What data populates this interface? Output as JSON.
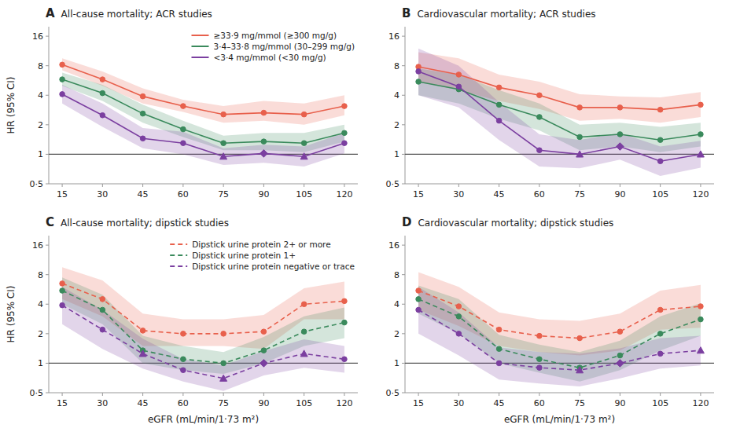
{
  "chart_data": [
    {
      "type": "line",
      "title": "All-cause mortality; ACR studies",
      "annotations": [
        "A"
      ],
      "y_label": "HR (95% CI)",
      "log": "y",
      "line_style": "solid",
      "legend": "upper right",
      "xlim": [
        10,
        125
      ],
      "xticks": [
        15,
        30,
        45,
        60,
        75,
        90,
        105,
        120
      ],
      "ylim": [
        0.5,
        20
      ],
      "yticks": [
        {
          "value": 0.5,
          "label": "0·5"
        },
        1,
        2,
        4,
        8,
        16
      ],
      "reference_line": 1,
      "x": [
        15,
        30,
        45,
        60,
        75,
        90,
        105,
        120
      ],
      "series": [
        {
          "name": "≥33·9 mg/mmol (≥300 mg/g)",
          "color": "#e8604c",
          "values": [
            8.2,
            5.8,
            3.9,
            3.1,
            2.55,
            2.65,
            2.55,
            3.1
          ],
          "ylo": [
            7.2,
            5.0,
            3.3,
            2.7,
            2.1,
            2.2,
            2.0,
            2.5
          ],
          "yhi": [
            9.5,
            7.0,
            4.7,
            3.6,
            3.1,
            3.5,
            3.3,
            4.0
          ],
          "marker": [
            "circle",
            "circle",
            "circle",
            "circle",
            "circle",
            "circle",
            "circle",
            "circle"
          ]
        },
        {
          "name": "3·4–33·8 mg/mmol (30–299 mg/g)",
          "color": "#3a8a5c",
          "values": [
            5.8,
            4.2,
            2.6,
            1.8,
            1.3,
            1.35,
            1.3,
            1.65
          ],
          "ylo": [
            5.0,
            3.5,
            2.1,
            1.5,
            1.1,
            1.1,
            1.05,
            1.35
          ],
          "yhi": [
            6.8,
            5.1,
            3.2,
            2.2,
            1.55,
            1.65,
            1.65,
            2.0
          ],
          "marker": [
            "circle",
            "circle",
            "circle",
            "circle",
            "circle",
            "circle",
            "circle",
            "circle"
          ]
        },
        {
          "name": "<3·4 mg/mmol (<30 mg/g)",
          "color": "#7b3fa0",
          "values": [
            4.1,
            2.5,
            1.45,
            1.3,
            0.95,
            1.02,
            0.95,
            1.3
          ],
          "ylo": [
            3.3,
            1.9,
            1.15,
            1.0,
            0.78,
            0.82,
            0.75,
            1.02
          ],
          "yhi": [
            5.1,
            3.3,
            1.85,
            1.7,
            1.15,
            1.25,
            1.2,
            1.65
          ],
          "marker": [
            "circle",
            "circle",
            "circle",
            "circle",
            "triangle",
            "diamond",
            "triangle",
            "circle"
          ]
        }
      ]
    },
    {
      "type": "line",
      "title": "Cardiovascular mortality; ACR studies",
      "annotations": [
        "B"
      ],
      "log": "y",
      "line_style": "solid",
      "xlim": [
        10,
        125
      ],
      "xticks": [
        15,
        30,
        45,
        60,
        75,
        90,
        105,
        120
      ],
      "ylim": [
        0.5,
        20
      ],
      "yticks": [
        {
          "value": 0.5,
          "label": "0·5"
        },
        1,
        2,
        4,
        8,
        16
      ],
      "reference_line": 1,
      "x": [
        15,
        30,
        45,
        60,
        75,
        90,
        105,
        120
      ],
      "series": [
        {
          "color": "#e8604c",
          "values": [
            7.8,
            6.5,
            4.8,
            4.0,
            3.0,
            3.0,
            2.85,
            3.2
          ],
          "ylo": [
            5.5,
            4.5,
            3.5,
            2.9,
            2.2,
            2.3,
            2.1,
            2.4
          ],
          "yhi": [
            11.0,
            9.5,
            6.5,
            5.5,
            4.1,
            3.9,
            3.8,
            4.3
          ],
          "marker": [
            "circle",
            "circle",
            "circle",
            "circle",
            "circle",
            "circle",
            "circle",
            "circle"
          ]
        },
        {
          "color": "#3a8a5c",
          "values": [
            5.5,
            4.6,
            3.2,
            2.4,
            1.5,
            1.6,
            1.4,
            1.6
          ],
          "ylo": [
            4.0,
            3.3,
            2.3,
            1.75,
            1.1,
            1.2,
            1.05,
            1.2
          ],
          "yhi": [
            7.5,
            6.5,
            4.5,
            3.3,
            2.0,
            2.1,
            1.9,
            2.1
          ],
          "marker": [
            "circle",
            "circle",
            "circle",
            "circle",
            "circle",
            "circle",
            "circle",
            "circle"
          ]
        },
        {
          "color": "#7b3fa0",
          "values": [
            7.0,
            4.9,
            2.2,
            1.1,
            1.0,
            1.2,
            0.85,
            1.0
          ],
          "ylo": [
            4.0,
            3.0,
            1.4,
            0.75,
            0.72,
            0.88,
            0.6,
            0.73
          ],
          "yhi": [
            12.0,
            8.0,
            3.4,
            1.6,
            1.4,
            1.65,
            1.2,
            1.37
          ],
          "marker": [
            "circle",
            "circle",
            "circle",
            "circle",
            "triangle",
            "diamond",
            "circle",
            "triangle"
          ]
        }
      ]
    },
    {
      "type": "line",
      "title": "All-cause mortality; dipstick studies",
      "annotations": [
        "C"
      ],
      "x_label": "eGFR (mL/min/1·73 m²)",
      "y_label": "HR (95% CI)",
      "log": "y",
      "line_style": "dashed",
      "legend": "upper right",
      "xlim": [
        10,
        125
      ],
      "xticks": [
        15,
        30,
        45,
        60,
        75,
        90,
        105,
        120
      ],
      "ylim": [
        0.5,
        20
      ],
      "yticks": [
        {
          "value": 0.5,
          "label": "0·5"
        },
        1,
        2,
        4,
        8,
        16
      ],
      "reference_line": 1,
      "x": [
        15,
        30,
        45,
        60,
        75,
        90,
        105,
        120
      ],
      "series": [
        {
          "name": "Dipstick urine protein 2+ or more",
          "color": "#e8604c",
          "values": [
            6.5,
            4.5,
            2.15,
            2.0,
            2.0,
            2.1,
            4.0,
            4.3
          ],
          "ylo": [
            4.5,
            3.0,
            1.5,
            1.5,
            1.5,
            1.4,
            2.8,
            2.8
          ],
          "yhi": [
            9.5,
            7.0,
            3.2,
            2.8,
            2.8,
            3.1,
            5.8,
            6.8
          ],
          "marker": [
            "circle",
            "circle",
            "circle",
            "circle",
            "circle",
            "circle",
            "circle",
            "circle"
          ]
        },
        {
          "name": "Dipstick urine protein 1+",
          "color": "#3a8a5c",
          "values": [
            5.5,
            3.5,
            1.35,
            1.1,
            1.0,
            1.35,
            2.1,
            2.6
          ],
          "ylo": [
            4.0,
            2.5,
            1.0,
            0.85,
            0.78,
            1.0,
            1.5,
            1.8
          ],
          "yhi": [
            7.5,
            5.0,
            1.9,
            1.5,
            1.3,
            1.85,
            3.0,
            3.7
          ],
          "marker": [
            "circle",
            "circle",
            "circle",
            "circle",
            "circle",
            "circle",
            "circle",
            "circle"
          ]
        },
        {
          "name": "Dipstick urine protein negative or trace",
          "color": "#7b3fa0",
          "values": [
            3.9,
            2.2,
            1.25,
            0.85,
            0.7,
            1.0,
            1.25,
            1.1
          ],
          "ylo": [
            2.5,
            1.4,
            0.88,
            0.65,
            0.52,
            0.75,
            0.9,
            0.8
          ],
          "yhi": [
            6.0,
            3.5,
            1.78,
            1.1,
            0.95,
            1.33,
            1.75,
            1.5
          ],
          "marker": [
            "circle",
            "circle",
            "triangle",
            "circle",
            "triangle",
            "diamond",
            "triangle",
            "circle"
          ]
        }
      ]
    },
    {
      "type": "line",
      "title": "Cardiovascular mortality; dipstick studies",
      "annotations": [
        "D"
      ],
      "x_label": "eGFR (mL/min/1·73 m²)",
      "log": "y",
      "line_style": "dashed",
      "xlim": [
        10,
        125
      ],
      "xticks": [
        15,
        30,
        45,
        60,
        75,
        90,
        105,
        120
      ],
      "ylim": [
        0.5,
        20
      ],
      "yticks": [
        {
          "value": 0.5,
          "label": "0·5"
        },
        1,
        2,
        4,
        8,
        16
      ],
      "reference_line": 1,
      "x": [
        15,
        30,
        45,
        60,
        75,
        90,
        105,
        120
      ],
      "series": [
        {
          "color": "#e8604c",
          "values": [
            5.5,
            3.8,
            2.2,
            1.9,
            1.8,
            2.1,
            3.5,
            3.8
          ],
          "ylo": [
            3.5,
            2.4,
            1.5,
            1.3,
            1.2,
            1.35,
            2.2,
            2.3
          ],
          "yhi": [
            8.5,
            6.0,
            3.3,
            2.8,
            2.7,
            3.2,
            5.5,
            6.3
          ],
          "marker": [
            "circle",
            "circle",
            "circle",
            "circle",
            "circle",
            "circle",
            "circle",
            "circle"
          ]
        },
        {
          "color": "#3a8a5c",
          "values": [
            4.5,
            3.0,
            1.4,
            1.1,
            0.9,
            1.2,
            2.0,
            2.8
          ],
          "ylo": [
            3.2,
            2.0,
            1.0,
            0.8,
            0.65,
            0.85,
            1.35,
            1.9
          ],
          "yhi": [
            6.2,
            4.5,
            1.95,
            1.55,
            1.3,
            1.7,
            3.0,
            4.1
          ],
          "marker": [
            "circle",
            "circle",
            "circle",
            "circle",
            "circle",
            "circle",
            "circle",
            "circle"
          ]
        },
        {
          "color": "#7b3fa0",
          "values": [
            3.5,
            2.0,
            1.0,
            0.9,
            0.85,
            1.0,
            1.25,
            1.35
          ],
          "ylo": [
            2.0,
            1.2,
            0.68,
            0.62,
            0.58,
            0.7,
            0.88,
            0.95
          ],
          "yhi": [
            6.0,
            3.3,
            1.45,
            1.3,
            1.25,
            1.42,
            1.8,
            1.9
          ],
          "marker": [
            "circle",
            "circle",
            "circle",
            "circle",
            "triangle",
            "diamond",
            "circle",
            "triangle"
          ]
        }
      ]
    }
  ]
}
